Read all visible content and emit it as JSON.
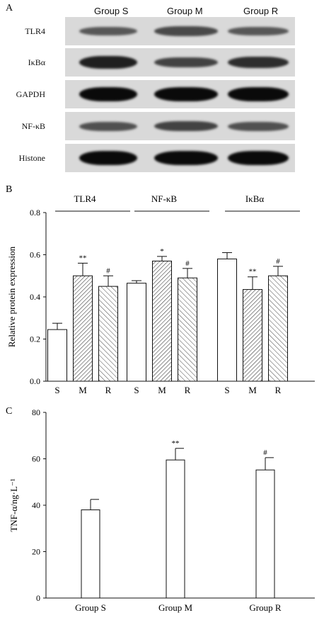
{
  "panel_a": {
    "letter": "A",
    "groups": [
      "Group S",
      "Group M",
      "Group R"
    ],
    "rows": [
      {
        "label": "TLR4",
        "intensity": [
          0.45,
          0.55,
          0.45
        ]
      },
      {
        "label": "IκBα",
        "intensity": [
          0.85,
          0.6,
          0.75
        ]
      },
      {
        "label": "GAPDH",
        "intensity": [
          1.0,
          1.0,
          1.0
        ]
      },
      {
        "label": "NF-κB",
        "intensity": [
          0.5,
          0.6,
          0.5
        ]
      },
      {
        "label": "Histone",
        "intensity": [
          1.0,
          1.0,
          1.0
        ]
      }
    ]
  },
  "chart_data": [
    {
      "panel": "B",
      "type": "bar",
      "ylabel": "Relative protein expression",
      "ylim": [
        0,
        0.8
      ],
      "yticks": [
        "0.0",
        "0.2",
        "0.4",
        "0.6",
        "0.8"
      ],
      "groups": [
        {
          "name": "TLR4",
          "categories": [
            "S",
            "M",
            "R"
          ],
          "values": [
            0.245,
            0.5,
            0.45
          ],
          "errors": [
            0.03,
            0.06,
            0.05
          ],
          "annotations": [
            "",
            "**",
            "#"
          ]
        },
        {
          "name": "NF-κB",
          "categories": [
            "S",
            "M",
            "R"
          ],
          "values": [
            0.465,
            0.57,
            0.49
          ],
          "errors": [
            0.012,
            0.022,
            0.045
          ],
          "annotations": [
            "",
            "*",
            "#"
          ]
        },
        {
          "name": "IκBα",
          "categories": [
            "S",
            "M",
            "R"
          ],
          "values": [
            0.58,
            0.435,
            0.5
          ],
          "errors": [
            0.03,
            0.06,
            0.045
          ],
          "annotations": [
            "",
            "**",
            "#"
          ]
        }
      ],
      "fills": [
        "white",
        "dense-hatch",
        "sparse-hatch"
      ]
    },
    {
      "panel": "C",
      "type": "bar",
      "ylabel": "TNF-α/ng·L⁻¹",
      "ylim": [
        0,
        80
      ],
      "yticks": [
        "0",
        "20",
        "40",
        "60",
        "80"
      ],
      "categories": [
        "Group S",
        "Group M",
        "Group R"
      ],
      "values": [
        38,
        59.5,
        55.2
      ],
      "errors": [
        4.5,
        5,
        5.3
      ],
      "annotations": [
        "",
        "**",
        "#"
      ]
    }
  ]
}
